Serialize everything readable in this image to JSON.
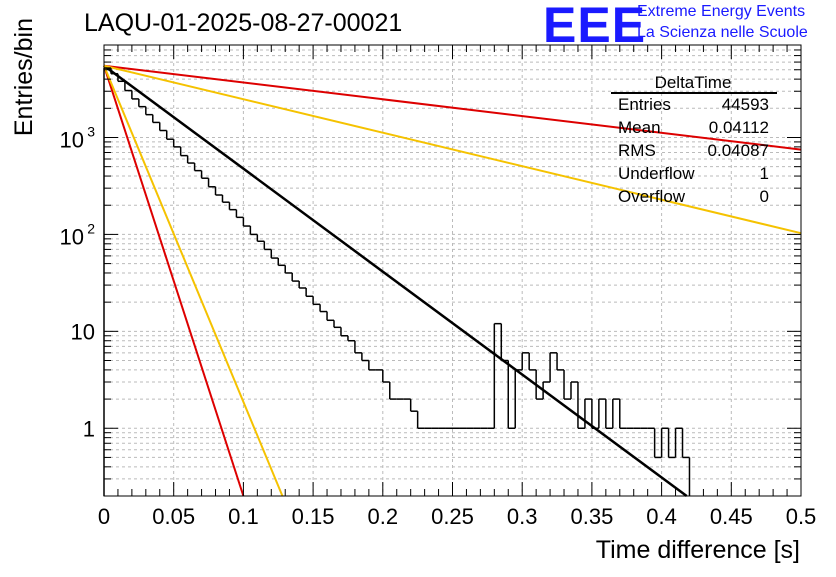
{
  "header": {
    "run_title": "LAQU-01-2025-08-27-00021",
    "logo_text": "EEE",
    "logo_line1": "Extreme Energy Events",
    "logo_line2": "La Scienza nelle Scuole"
  },
  "stats_box": {
    "title": "DeltaTime",
    "rows": [
      {
        "label": "Entries",
        "value": "44593"
      },
      {
        "label": "Mean",
        "value": "0.04112"
      },
      {
        "label": "RMS",
        "value": "0.04087"
      },
      {
        "label": "Underflow",
        "value": "1"
      },
      {
        "label": "Overflow",
        "value": "0"
      }
    ]
  },
  "colors": {
    "histogram": "#000000",
    "fit_main": "#000000",
    "fit_red": "#dd0000",
    "fit_yellow": "#f5c200",
    "grid": "#bbbbbb"
  },
  "chart_data": {
    "type": "histogram",
    "title": "LAQU-01-2025-08-27-00021",
    "xlabel": "Time difference [s]",
    "ylabel": "Entries/bin",
    "xlim": [
      0,
      0.5
    ],
    "ylim": [
      0.2,
      9000
    ],
    "yscale": "log",
    "grid": true,
    "x_ticks": [
      {
        "v": 0,
        "label": "0"
      },
      {
        "v": 0.05,
        "label": "0.05"
      },
      {
        "v": 0.1,
        "label": "0.1"
      },
      {
        "v": 0.15,
        "label": "0.15"
      },
      {
        "v": 0.2,
        "label": "0.2"
      },
      {
        "v": 0.25,
        "label": "0.25"
      },
      {
        "v": 0.3,
        "label": "0.3"
      },
      {
        "v": 0.35,
        "label": "0.35"
      },
      {
        "v": 0.4,
        "label": "0.4"
      },
      {
        "v": 0.45,
        "label": "0.45"
      },
      {
        "v": 0.5,
        "label": "0.5"
      }
    ],
    "y_ticks": [
      {
        "v": 1,
        "label": "1"
      },
      {
        "v": 10,
        "label": "10"
      },
      {
        "v": 100,
        "base": "10",
        "exp": "2"
      },
      {
        "v": 1000,
        "base": "10",
        "exp": "3"
      }
    ],
    "bin_width": 0.005,
    "hist_bins": [
      {
        "x": 0.0,
        "y": 5200
      },
      {
        "x": 0.005,
        "y": 4550
      },
      {
        "x": 0.01,
        "y": 3800
      },
      {
        "x": 0.015,
        "y": 3050
      },
      {
        "x": 0.02,
        "y": 2500
      },
      {
        "x": 0.025,
        "y": 2080
      },
      {
        "x": 0.03,
        "y": 1720
      },
      {
        "x": 0.035,
        "y": 1430
      },
      {
        "x": 0.04,
        "y": 1180
      },
      {
        "x": 0.045,
        "y": 960
      },
      {
        "x": 0.05,
        "y": 800
      },
      {
        "x": 0.055,
        "y": 650
      },
      {
        "x": 0.06,
        "y": 545
      },
      {
        "x": 0.065,
        "y": 455
      },
      {
        "x": 0.07,
        "y": 380
      },
      {
        "x": 0.075,
        "y": 310
      },
      {
        "x": 0.08,
        "y": 255
      },
      {
        "x": 0.085,
        "y": 215
      },
      {
        "x": 0.09,
        "y": 180
      },
      {
        "x": 0.095,
        "y": 150
      },
      {
        "x": 0.1,
        "y": 122
      },
      {
        "x": 0.105,
        "y": 100
      },
      {
        "x": 0.11,
        "y": 85
      },
      {
        "x": 0.115,
        "y": 70
      },
      {
        "x": 0.12,
        "y": 57
      },
      {
        "x": 0.125,
        "y": 48
      },
      {
        "x": 0.13,
        "y": 40
      },
      {
        "x": 0.135,
        "y": 33
      },
      {
        "x": 0.14,
        "y": 28
      },
      {
        "x": 0.145,
        "y": 23
      },
      {
        "x": 0.15,
        "y": 19
      },
      {
        "x": 0.155,
        "y": 16
      },
      {
        "x": 0.16,
        "y": 13
      },
      {
        "x": 0.165,
        "y": 11
      },
      {
        "x": 0.17,
        "y": 9
      },
      {
        "x": 0.175,
        "y": 8
      },
      {
        "x": 0.18,
        "y": 6
      },
      {
        "x": 0.185,
        "y": 5
      },
      {
        "x": 0.19,
        "y": 4
      },
      {
        "x": 0.195,
        "y": 4
      },
      {
        "x": 0.2,
        "y": 3
      },
      {
        "x": 0.205,
        "y": 2
      },
      {
        "x": 0.21,
        "y": 2
      },
      {
        "x": 0.215,
        "y": 2
      },
      {
        "x": 0.22,
        "y": 1.5
      },
      {
        "x": 0.225,
        "y": 1
      },
      {
        "x": 0.23,
        "y": 1
      },
      {
        "x": 0.235,
        "y": 1
      },
      {
        "x": 0.24,
        "y": 1
      },
      {
        "x": 0.245,
        "y": 1
      },
      {
        "x": 0.25,
        "y": 1
      },
      {
        "x": 0.255,
        "y": 1
      },
      {
        "x": 0.26,
        "y": 1
      },
      {
        "x": 0.265,
        "y": 1
      },
      {
        "x": 0.27,
        "y": 1
      },
      {
        "x": 0.275,
        "y": 1
      },
      {
        "x": 0.28,
        "y": 12
      },
      {
        "x": 0.285,
        "y": 5
      },
      {
        "x": 0.29,
        "y": 1
      },
      {
        "x": 0.295,
        "y": 4
      },
      {
        "x": 0.3,
        "y": 6
      },
      {
        "x": 0.305,
        "y": 4
      },
      {
        "x": 0.31,
        "y": 2
      },
      {
        "x": 0.315,
        "y": 3
      },
      {
        "x": 0.32,
        "y": 6
      },
      {
        "x": 0.325,
        "y": 4
      },
      {
        "x": 0.33,
        "y": 2
      },
      {
        "x": 0.335,
        "y": 3
      },
      {
        "x": 0.34,
        "y": 1
      },
      {
        "x": 0.345,
        "y": 2
      },
      {
        "x": 0.35,
        "y": 1
      },
      {
        "x": 0.355,
        "y": 2
      },
      {
        "x": 0.36,
        "y": 1
      },
      {
        "x": 0.365,
        "y": 2
      },
      {
        "x": 0.37,
        "y": 1
      },
      {
        "x": 0.375,
        "y": 1
      },
      {
        "x": 0.38,
        "y": 1
      },
      {
        "x": 0.385,
        "y": 1
      },
      {
        "x": 0.39,
        "y": 1
      },
      {
        "x": 0.395,
        "y": 0.5
      },
      {
        "x": 0.4,
        "y": 1
      },
      {
        "x": 0.405,
        "y": 0.5
      },
      {
        "x": 0.41,
        "y": 1
      },
      {
        "x": 0.415,
        "y": 0.5
      }
    ],
    "fit_lines": [
      {
        "name": "fit",
        "color": "#000000",
        "points": [
          [
            0,
            5500
          ],
          [
            0.418,
            0.2
          ]
        ]
      },
      {
        "name": "upper-red",
        "color": "#dd0000",
        "points": [
          [
            0,
            5500
          ],
          [
            0.5,
            750
          ]
        ]
      },
      {
        "name": "upper-yellow",
        "color": "#f5c200",
        "points": [
          [
            0,
            5500
          ],
          [
            0.5,
            103
          ]
        ]
      },
      {
        "name": "lower-red",
        "color": "#dd0000",
        "points": [
          [
            0,
            5500
          ],
          [
            0.1,
            0.2
          ]
        ]
      },
      {
        "name": "lower-yellow",
        "color": "#f5c200",
        "points": [
          [
            0,
            5500
          ],
          [
            0.128,
            0.2
          ]
        ]
      }
    ]
  }
}
